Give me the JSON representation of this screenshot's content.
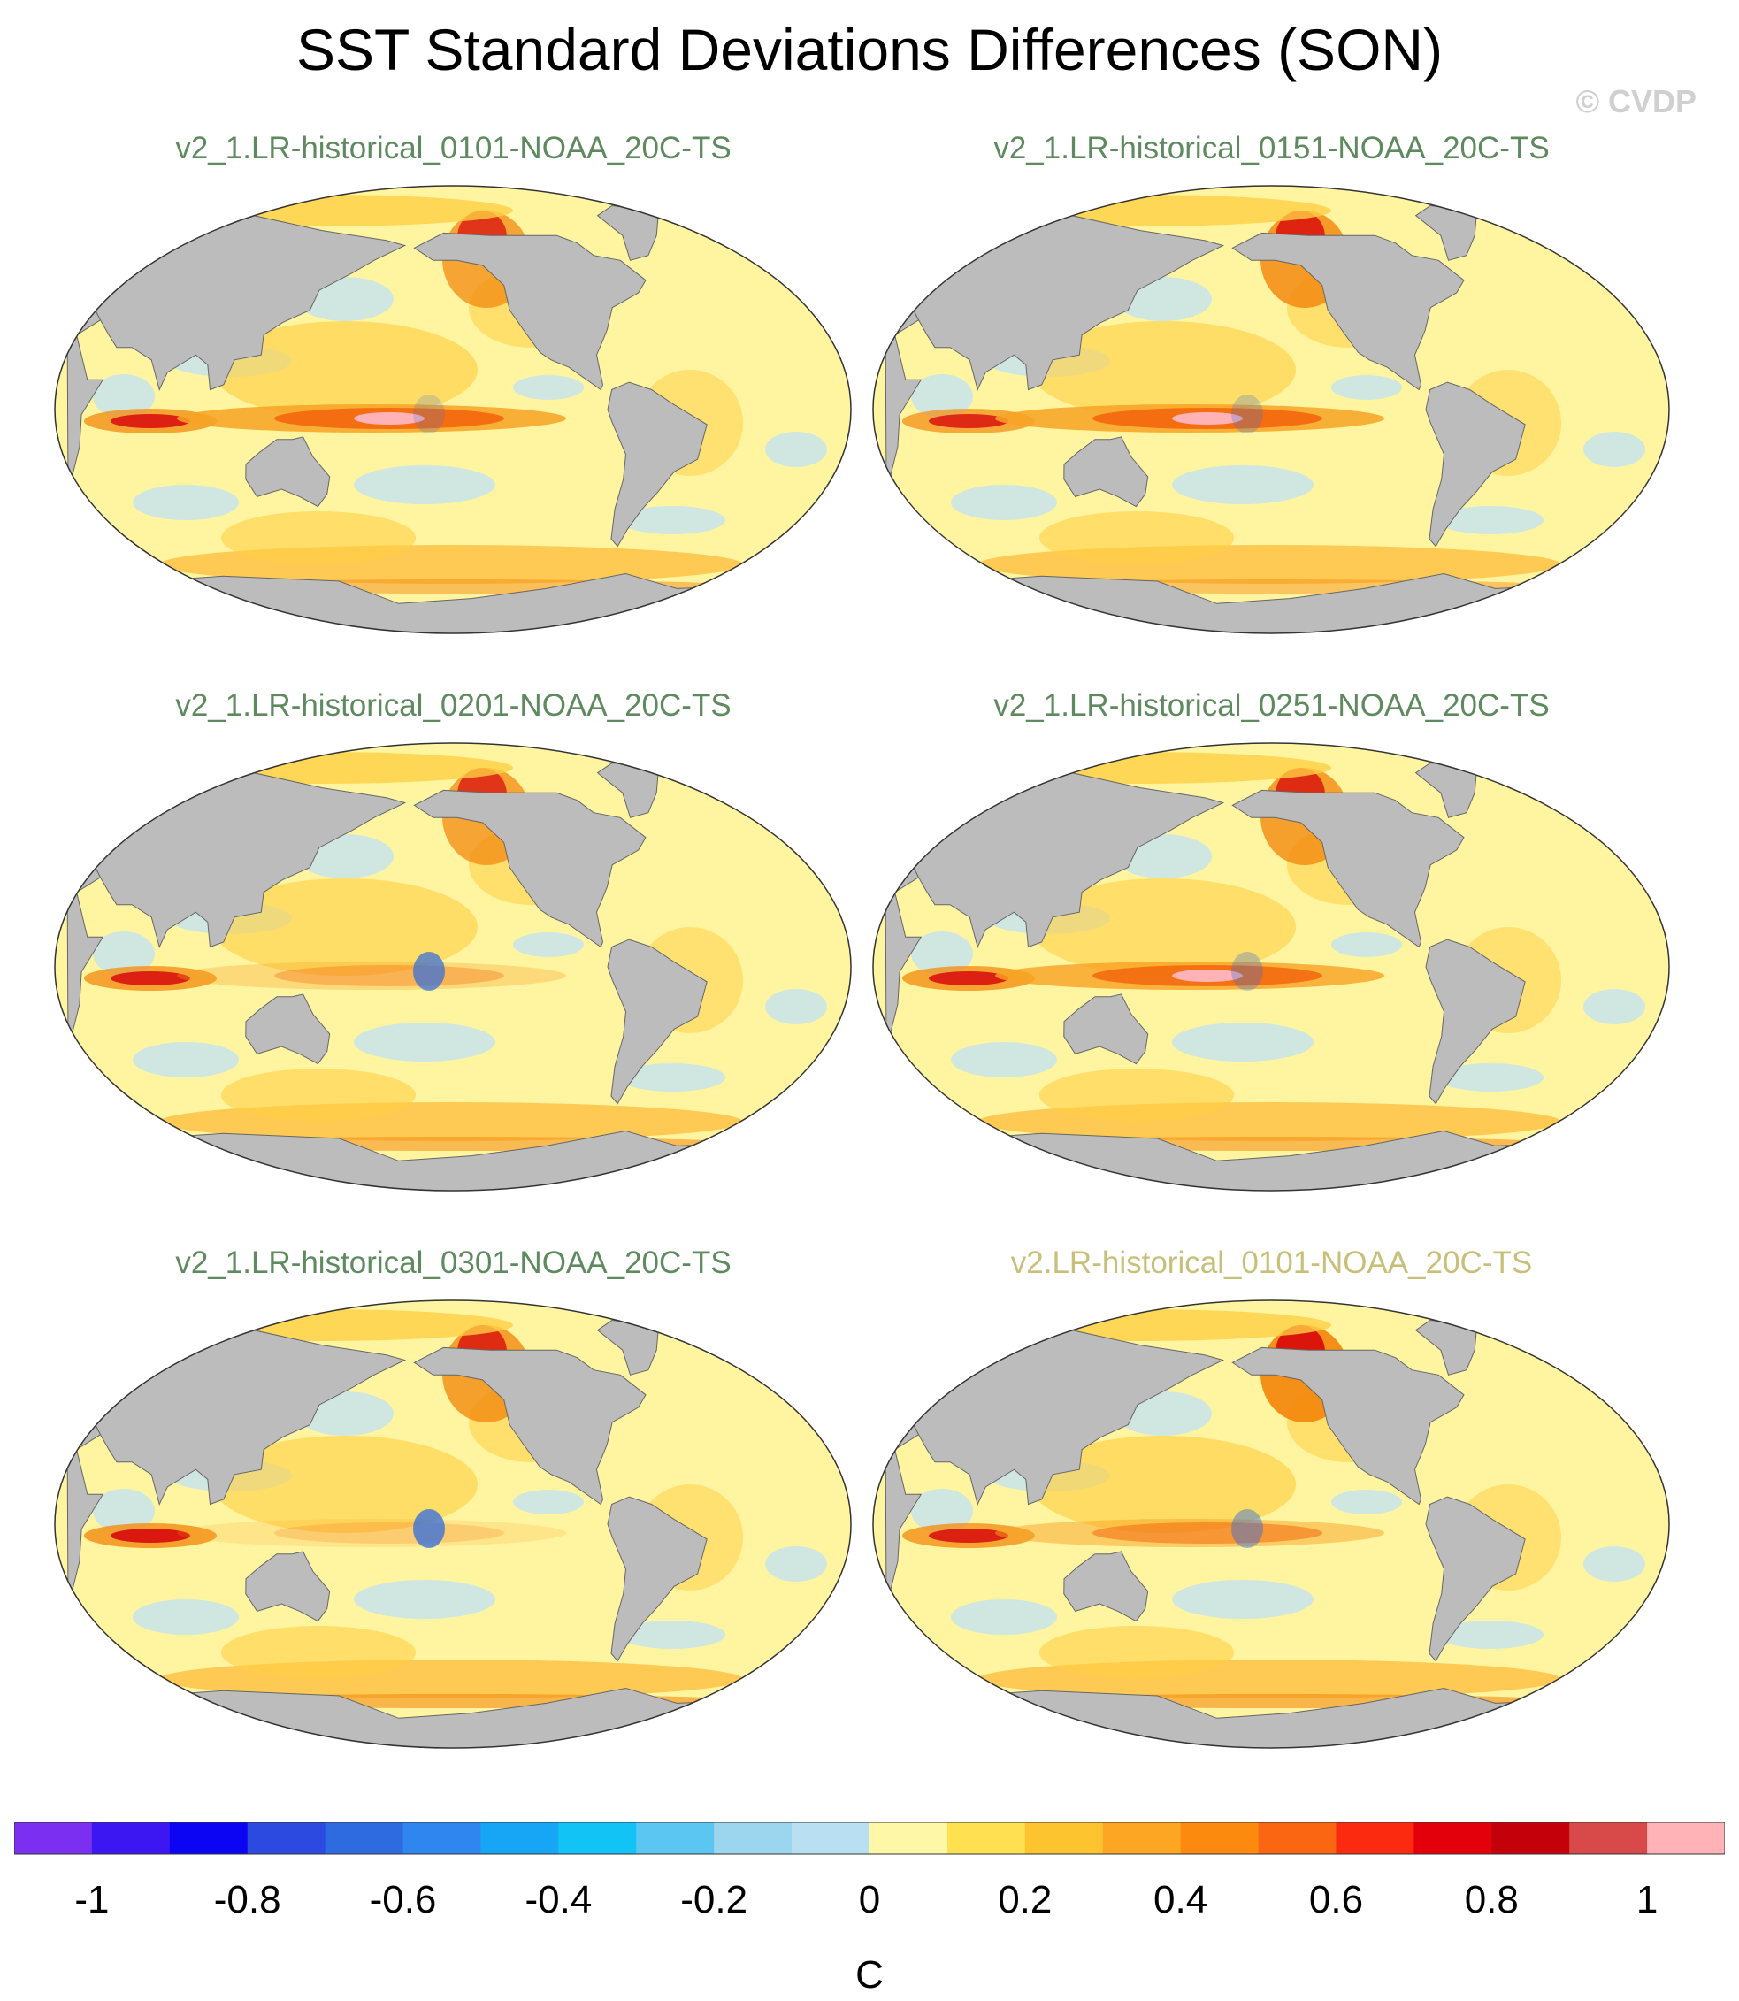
{
  "title": "SST Standard Deviations Differences (SON)",
  "credit": "© CVDP",
  "panels": [
    {
      "title": "v2_1.LR-historical_0101-NOAA_20C-TS",
      "color": "#5f8a5f",
      "features": {
        "enso": 0.95,
        "atlantic": 0.75,
        "southern": 0.5,
        "indian": 0.8,
        "pacific_north": 0.45,
        "cold_pool": 0.2
      }
    },
    {
      "title": "v2_1.LR-historical_0151-NOAA_20C-TS",
      "color": "#5f8a5f",
      "features": {
        "enso": 0.95,
        "atlantic": 0.85,
        "southern": 0.45,
        "indian": 0.75,
        "pacific_north": 0.4,
        "cold_pool": 0.25
      }
    },
    {
      "title": "v2_1.LR-historical_0201-NOAA_20C-TS",
      "color": "#5f8a5f",
      "features": {
        "enso": 0.35,
        "atlantic": 0.75,
        "southern": 0.55,
        "indian": 0.8,
        "pacific_north": 0.35,
        "cold_pool": 0.7
      }
    },
    {
      "title": "v2_1.LR-historical_0251-NOAA_20C-TS",
      "color": "#5f8a5f",
      "features": {
        "enso": 0.9,
        "atlantic": 0.8,
        "southern": 0.55,
        "indian": 0.8,
        "pacific_north": 0.3,
        "cold_pool": 0.3
      }
    },
    {
      "title": "v2_1.LR-historical_0301-NOAA_20C-TS",
      "color": "#5f8a5f",
      "features": {
        "enso": 0.2,
        "atlantic": 0.8,
        "southern": 0.6,
        "indian": 0.85,
        "pacific_north": 0.4,
        "cold_pool": 0.75
      }
    },
    {
      "title": "v2.LR-historical_0101-NOAA_20C-TS",
      "color": "#c8c07a",
      "features": {
        "enso": 0.55,
        "atlantic": 0.95,
        "southern": 0.6,
        "indian": 0.8,
        "pacific_north": 0.5,
        "cold_pool": 0.45
      }
    }
  ],
  "colorbar": {
    "colors": [
      "#7b2ff0",
      "#3d17f2",
      "#0b05f3",
      "#2d4ae0",
      "#2f6be0",
      "#2f86ee",
      "#17a6f5",
      "#12c3f5",
      "#5cc6f3",
      "#9bd6ee",
      "#b9e0f2",
      "#fff7a8",
      "#ffe050",
      "#fdc430",
      "#fda623",
      "#fc8a0e",
      "#fb6612",
      "#fc2a0e",
      "#e4000a",
      "#c4000a",
      "#d84a4a",
      "#ffb3b7"
    ],
    "ticks": [
      "-1",
      "-0.8",
      "-0.6",
      "-0.4",
      "-0.2",
      "0",
      "0.2",
      "0.4",
      "0.6",
      "0.8",
      "1"
    ],
    "unit": "C"
  }
}
